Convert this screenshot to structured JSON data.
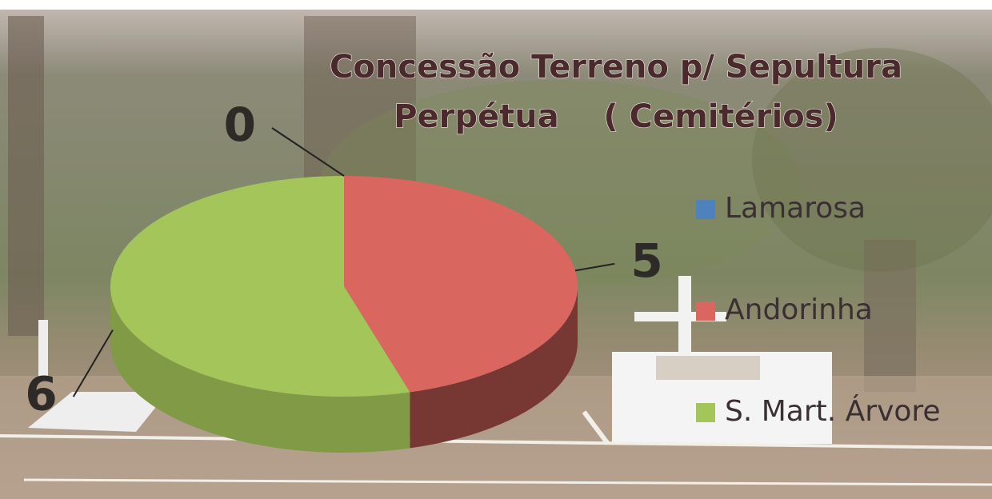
{
  "chart_data": {
    "type": "pie",
    "title": [
      "Concessão Terreno p/ Sepultura",
      "Perpétua    ( Cemitérios)"
    ],
    "categories": [
      "Lamarosa",
      "Andorinha",
      "S. Mart. Árvore"
    ],
    "values": [
      0,
      5,
      6
    ],
    "colors": [
      "#4f81bd",
      "#d9665f",
      "#a4c55a"
    ],
    "legend": "right"
  }
}
